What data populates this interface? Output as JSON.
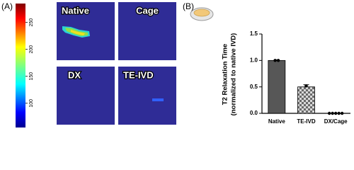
{
  "panel_a": {
    "label": "(A)",
    "images": [
      "Native",
      "Cage",
      "DX",
      "TE-IVD"
    ],
    "colorbar": {
      "clim": [
        55,
        285
      ],
      "ticks": [
        100,
        150,
        200,
        250
      ]
    }
  },
  "chart_data": {
    "type": "bar",
    "label": "(B)",
    "y_label": [
      "T2 Relaxation Time",
      "(normalized to native IVD)"
    ],
    "categories": [
      "Native",
      "TE-IVD",
      "DX/Cage"
    ],
    "values": [
      1.0,
      0.5,
      0.0
    ],
    "errors": [
      0.01,
      0.04,
      0.0
    ],
    "points": [
      [
        1.0,
        1.0
      ],
      [
        0.52
      ],
      [
        0.0,
        0.0,
        0.0,
        0.0,
        0.0
      ]
    ],
    "color": "#575757",
    "fills": [
      "solid",
      "checkered",
      "solid"
    ],
    "ylim": [
      0,
      1.5
    ],
    "yticks": [
      {
        "value": 0,
        "label": "0.0"
      },
      {
        "value": 0.5,
        "label": "0.5"
      },
      {
        "value": 1.0,
        "label": "1.0"
      },
      {
        "value": 1.5,
        "label": "1.5"
      }
    ]
  }
}
